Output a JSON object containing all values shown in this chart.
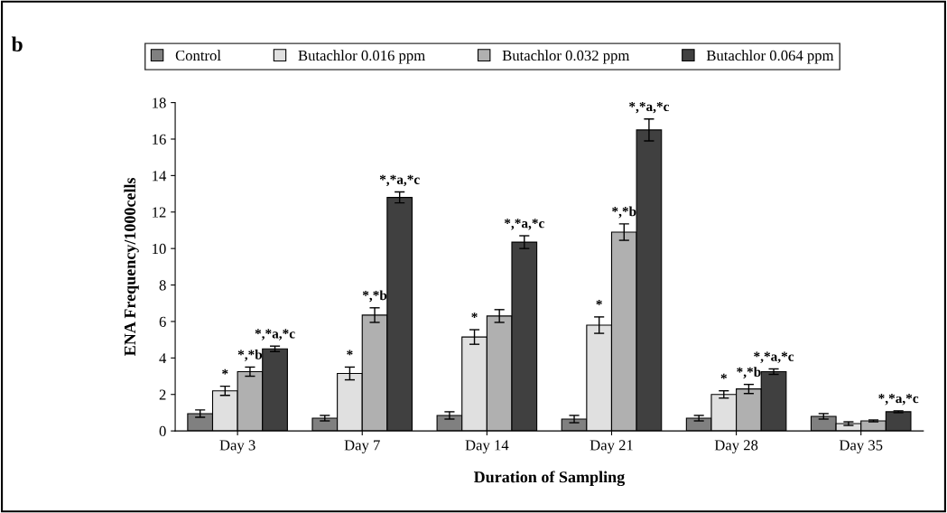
{
  "chart_data": {
    "type": "bar",
    "xlabel": "Duration of Sampling",
    "ylabel": "ENA Frequency/1000cells",
    "categories": [
      "Day 3",
      "Day 7",
      "Day 14",
      "Day 21",
      "Day 28",
      "Day 35"
    ],
    "series": [
      {
        "name": "Control",
        "color": "#808080",
        "values": [
          0.95,
          0.7,
          0.85,
          0.65,
          0.7,
          0.8
        ],
        "errors": [
          0.2,
          0.15,
          0.2,
          0.2,
          0.15,
          0.15
        ],
        "value_labels": [
          null,
          null,
          null,
          null,
          null,
          null
        ]
      },
      {
        "name": "Butachlor 0.016 ppm",
        "color": "#e0e0e0",
        "values": [
          2.2,
          3.15,
          5.15,
          5.8,
          2.0,
          0.4
        ],
        "errors": [
          0.25,
          0.35,
          0.4,
          0.45,
          0.2,
          0.1
        ],
        "value_labels": [
          "*",
          "*",
          "*",
          "*",
          "*",
          null
        ]
      },
      {
        "name": "Butachlor 0.032 ppm",
        "color": "#b0b0b0",
        "values": [
          3.25,
          6.35,
          6.3,
          10.9,
          2.3,
          0.55
        ],
        "errors": [
          0.25,
          0.4,
          0.35,
          0.45,
          0.25,
          0.05
        ],
        "value_labels": [
          "*,*b",
          "*,*b",
          null,
          "*,*b",
          "*,*b",
          null
        ]
      },
      {
        "name": "Butachlor 0.064 ppm",
        "color": "#404040",
        "values": [
          4.5,
          12.8,
          10.35,
          16.5,
          3.25,
          1.05
        ],
        "errors": [
          0.15,
          0.3,
          0.35,
          0.6,
          0.15,
          0.05
        ],
        "value_labels": [
          "*,*a,*c",
          "*,*a,*c",
          "*,*a,*c",
          "*,*a,*c",
          "*,*a,*c",
          "*,*a,*c"
        ]
      }
    ],
    "ylim": [
      0,
      18
    ],
    "yticks": [
      0,
      2,
      4,
      6,
      8,
      10,
      12,
      14,
      16,
      18
    ],
    "grid": false,
    "legend": "top",
    "annotations": [
      "b"
    ]
  }
}
